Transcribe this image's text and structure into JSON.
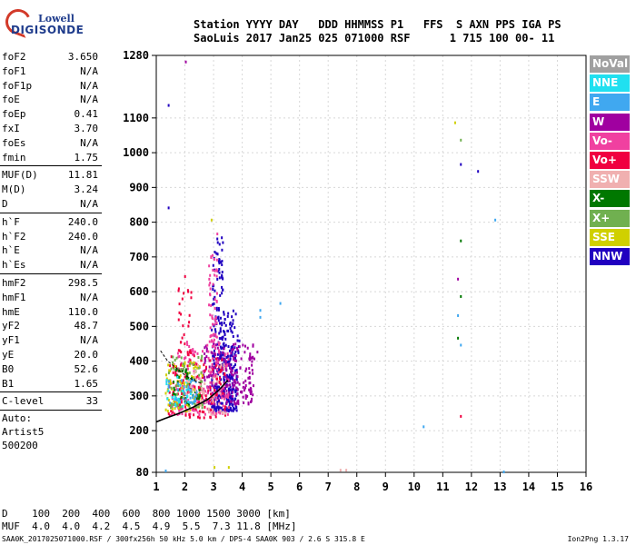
{
  "logo": {
    "line1": "Lowell",
    "line2": "DIGISONDE"
  },
  "header": {
    "labels": [
      "Station",
      "YYYY",
      "DAY",
      "DDD",
      "HHMMSS",
      "P1",
      "FFS",
      "S",
      "AXN",
      "PPS",
      "IGA",
      "PS"
    ],
    "line1": "Station YYYY DAY   DDD HHMMSS P1   FFS  S AXN PPS IGA PS",
    "line2": "SaoLuis 2017 Jan25 025 071000 RSF      1 715 100 00- 11"
  },
  "params": [
    {
      "group": [
        {
          "k": "foF2",
          "v": "3.650"
        },
        {
          "k": "foF1",
          "v": "N/A"
        },
        {
          "k": "foF1p",
          "v": "N/A"
        },
        {
          "k": "foE",
          "v": "N/A"
        },
        {
          "k": "foEp",
          "v": "0.41"
        },
        {
          "k": "fxI",
          "v": "3.70"
        },
        {
          "k": "foEs",
          "v": "N/A"
        },
        {
          "k": "fmin",
          "v": "1.75"
        }
      ]
    },
    {
      "group": [
        {
          "k": "MUF(D)",
          "v": "11.81"
        },
        {
          "k": "M(D)",
          "v": "3.24"
        },
        {
          "k": "D",
          "v": "N/A"
        }
      ]
    },
    {
      "group": [
        {
          "k": "h`F",
          "v": "240.0"
        },
        {
          "k": "h`F2",
          "v": "240.0"
        },
        {
          "k": "h`E",
          "v": "N/A"
        },
        {
          "k": "h`Es",
          "v": "N/A"
        }
      ]
    },
    {
      "group": [
        {
          "k": "hmF2",
          "v": "298.5"
        },
        {
          "k": "hmF1",
          "v": "N/A"
        },
        {
          "k": "hmE",
          "v": "110.0"
        },
        {
          "k": "yF2",
          "v": "48.7"
        },
        {
          "k": "yF1",
          "v": "N/A"
        },
        {
          "k": "yE",
          "v": "20.0"
        },
        {
          "k": "B0",
          "v": "52.6"
        },
        {
          "k": "B1",
          "v": "1.65"
        }
      ]
    },
    {
      "group": [
        {
          "k": "C-level",
          "v": "33"
        }
      ]
    }
  ],
  "autoscale": [
    "Auto:",
    "Artist5",
    "500200"
  ],
  "legend": [
    {
      "label": "NoVal",
      "color": "#a0a0a0"
    },
    {
      "label": "NNE",
      "color": "#20e0f0"
    },
    {
      "label": "E",
      "color": "#40a8f0"
    },
    {
      "label": "W",
      "color": "#a000a0"
    },
    {
      "label": "Vo-",
      "color": "#f040a0"
    },
    {
      "label": "Vo+",
      "color": "#f00040"
    },
    {
      "label": "SSW",
      "color": "#f0b0b0"
    },
    {
      "label": "X-",
      "color": "#007800"
    },
    {
      "label": "X+",
      "color": "#70b050"
    },
    {
      "label": "SSE",
      "color": "#d0d000"
    },
    {
      "label": "NNW",
      "color": "#2000c0"
    }
  ],
  "mufTable": {
    "row1": "D    100  200  400  600  800 1000 1500 3000 [km]",
    "row2": "MUF  4.0  4.0  4.2  4.5  4.9  5.5  7.3 11.8 [MHz]"
  },
  "footer": {
    "left": "SAA0K_2017025071000.RSF / 300fx256h 50 kHz 5.0 km / DPS-4 SAA0K 903 / 2.6 S 315.8 E",
    "right": "Ion2Png 1.3.17"
  },
  "chart_data": {
    "type": "scatter",
    "xlim": [
      1,
      16
    ],
    "ylim": [
      80,
      1280
    ],
    "x_ticks": [
      1,
      2,
      3,
      4,
      5,
      6,
      7,
      8,
      9,
      10,
      11,
      12,
      13,
      14,
      15,
      16
    ],
    "y_ticks": [
      80,
      200,
      300,
      400,
      500,
      600,
      700,
      800,
      900,
      1000,
      1100,
      1280
    ],
    "grid": true,
    "clusters": [
      {
        "series": "NNW",
        "x_range": [
          2.9,
          3.8
        ],
        "y_range": [
          260,
          420
        ],
        "n": 260
      },
      {
        "series": "NNW",
        "x_range": [
          2.9,
          3.3
        ],
        "y_range": [
          420,
          760
        ],
        "n": 90
      },
      {
        "series": "NNW",
        "x_range": [
          3.3,
          3.9
        ],
        "y_range": [
          420,
          560
        ],
        "n": 60
      },
      {
        "series": "W",
        "x_range": [
          2.6,
          4.4
        ],
        "y_range": [
          280,
          460
        ],
        "n": 220
      },
      {
        "series": "Vo-",
        "x_range": [
          1.5,
          3.5
        ],
        "y_range": [
          250,
          460
        ],
        "n": 180
      },
      {
        "series": "Vo-",
        "x_range": [
          2.8,
          3.1
        ],
        "y_range": [
          460,
          720
        ],
        "n": 50
      },
      {
        "series": "Vo+",
        "x_range": [
          1.4,
          3.4
        ],
        "y_range": [
          240,
          420
        ],
        "n": 140
      },
      {
        "series": "Vo+",
        "x_range": [
          1.7,
          2.2
        ],
        "y_range": [
          420,
          650
        ],
        "n": 30
      },
      {
        "series": "SSE",
        "x_range": [
          1.3,
          2.6
        ],
        "y_range": [
          260,
          400
        ],
        "n": 80
      },
      {
        "series": "X+",
        "x_range": [
          1.4,
          2.6
        ],
        "y_range": [
          270,
          420
        ],
        "n": 70
      },
      {
        "series": "X-",
        "x_range": [
          1.5,
          2.5
        ],
        "y_range": [
          280,
          380
        ],
        "n": 40
      },
      {
        "series": "E",
        "x_range": [
          1.3,
          2.4
        ],
        "y_range": [
          280,
          360
        ],
        "n": 40
      },
      {
        "series": "NNE",
        "x_range": [
          1.3,
          2.2
        ],
        "y_range": [
          270,
          360
        ],
        "n": 25
      },
      {
        "series": "SSW",
        "x_range": [
          2.0,
          3.4
        ],
        "y_range": [
          250,
          400
        ],
        "n": 50
      }
    ],
    "points": [
      {
        "x": 1.4,
        "y": 1140,
        "series": "NNW"
      },
      {
        "x": 1.4,
        "y": 845,
        "series": "NNW"
      },
      {
        "x": 1.3,
        "y": 88,
        "series": "E"
      },
      {
        "x": 2.0,
        "y": 1265,
        "series": "W"
      },
      {
        "x": 2.9,
        "y": 810,
        "series": "SSE"
      },
      {
        "x": 3.1,
        "y": 770,
        "series": "Vo-"
      },
      {
        "x": 4.5,
        "y": 430,
        "series": "W"
      },
      {
        "x": 4.6,
        "y": 550,
        "series": "E"
      },
      {
        "x": 4.6,
        "y": 530,
        "series": "E"
      },
      {
        "x": 5.3,
        "y": 570,
        "series": "E"
      },
      {
        "x": 3.0,
        "y": 98,
        "series": "SSE"
      },
      {
        "x": 3.5,
        "y": 98,
        "series": "SSE"
      },
      {
        "x": 7.4,
        "y": 90,
        "series": "SSW"
      },
      {
        "x": 7.6,
        "y": 90,
        "series": "SSW"
      },
      {
        "x": 10.3,
        "y": 215,
        "series": "E"
      },
      {
        "x": 11.4,
        "y": 1090,
        "series": "SSE"
      },
      {
        "x": 11.6,
        "y": 1040,
        "series": "X+"
      },
      {
        "x": 11.6,
        "y": 970,
        "series": "NNW"
      },
      {
        "x": 12.2,
        "y": 950,
        "series": "NNW"
      },
      {
        "x": 11.6,
        "y": 750,
        "series": "X-"
      },
      {
        "x": 11.5,
        "y": 640,
        "series": "W"
      },
      {
        "x": 11.6,
        "y": 590,
        "series": "X-"
      },
      {
        "x": 11.5,
        "y": 535,
        "series": "E"
      },
      {
        "x": 11.5,
        "y": 470,
        "series": "X-"
      },
      {
        "x": 11.6,
        "y": 450,
        "series": "E"
      },
      {
        "x": 11.6,
        "y": 245,
        "series": "Vo+"
      },
      {
        "x": 12.8,
        "y": 810,
        "series": "E"
      },
      {
        "x": 13.1,
        "y": 85,
        "series": "E"
      }
    ],
    "trace_curve": [
      [
        1.0,
        225
      ],
      [
        1.3,
        235
      ],
      [
        1.8,
        250
      ],
      [
        2.3,
        268
      ],
      [
        2.8,
        290
      ],
      [
        3.2,
        318
      ],
      [
        3.5,
        345
      ]
    ],
    "trace_curve_dashed": [
      [
        1.15,
        430
      ],
      [
        1.4,
        400
      ],
      [
        1.7,
        380
      ],
      [
        2.0,
        360
      ],
      [
        2.3,
        345
      ],
      [
        2.6,
        335
      ]
    ]
  }
}
